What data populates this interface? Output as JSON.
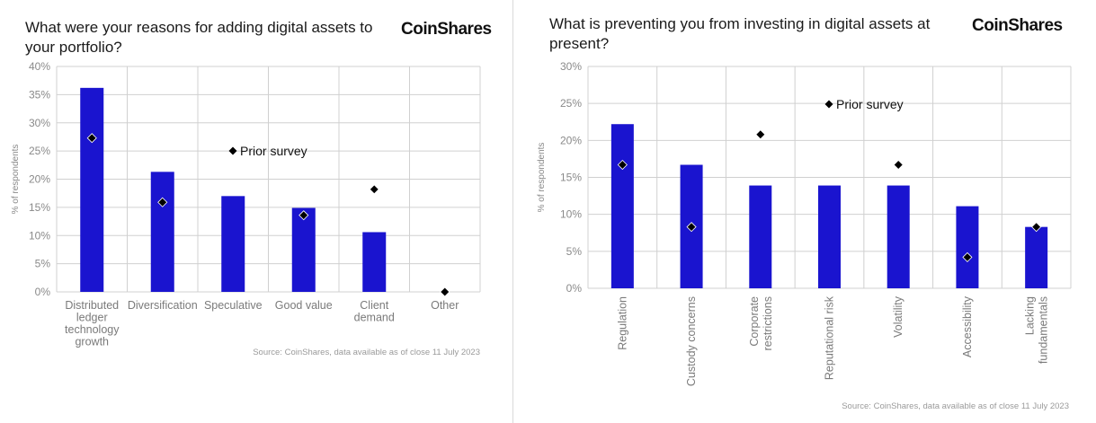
{
  "colors": {
    "bar": "#1a14cf",
    "marker": "#000000",
    "grid": "#d0d0d0"
  },
  "left": {
    "title": "What were your reasons for adding digital assets to your portfolio?",
    "logo": "CoinShares",
    "source": "Source: CoinShares, data available as of close 11 July 2023"
  },
  "right": {
    "title": "What is preventing you from investing in digital assets at present?",
    "logo": "CoinShares",
    "source": "Source: CoinShares, data available as of close 11 July 2023"
  },
  "chart_data": [
    {
      "type": "bar",
      "title": "What were your reasons for adding digital assets to your portfolio?",
      "ylabel": "% of respondents",
      "ylim": [
        0,
        40
      ],
      "yticks": [
        "0%",
        "5%",
        "10%",
        "15%",
        "20%",
        "25%",
        "30%",
        "35%",
        "40%"
      ],
      "categories": [
        [
          "Distributed",
          "ledger",
          "technology",
          "growth"
        ],
        [
          "Diversification"
        ],
        [
          "Speculative"
        ],
        [
          "Good value"
        ],
        [
          "Client",
          "demand"
        ],
        [
          "Other"
        ]
      ],
      "series": [
        {
          "type": "bar",
          "values": [
            36.2,
            21.3,
            17.0,
            14.9,
            10.6,
            0
          ]
        },
        {
          "type": "marker",
          "name": "Prior survey",
          "values": [
            27.3,
            15.9,
            null,
            13.6,
            18.2,
            0
          ]
        }
      ],
      "legend": "Prior survey",
      "grid": true
    },
    {
      "type": "bar",
      "title": "What is preventing you from investing in digital assets at present?",
      "ylabel": "% of respondents",
      "ylim": [
        0,
        30
      ],
      "yticks": [
        "0%",
        "5%",
        "10%",
        "15%",
        "20%",
        "25%",
        "30%"
      ],
      "categories": [
        [
          "Regulation"
        ],
        [
          "Custody concerns"
        ],
        [
          "Corporate",
          "restrictions"
        ],
        [
          "Reputational risk"
        ],
        [
          "Volatility"
        ],
        [
          "Accessibility"
        ],
        [
          "Lacking",
          "fundamentals"
        ]
      ],
      "series": [
        {
          "type": "bar",
          "values": [
            22.2,
            16.7,
            13.9,
            13.9,
            13.9,
            11.1,
            8.3
          ]
        },
        {
          "type": "marker",
          "name": "Prior survey",
          "values": [
            16.7,
            8.3,
            20.8,
            null,
            16.7,
            4.2,
            8.3
          ]
        }
      ],
      "legend": "Prior survey",
      "grid": true
    }
  ]
}
